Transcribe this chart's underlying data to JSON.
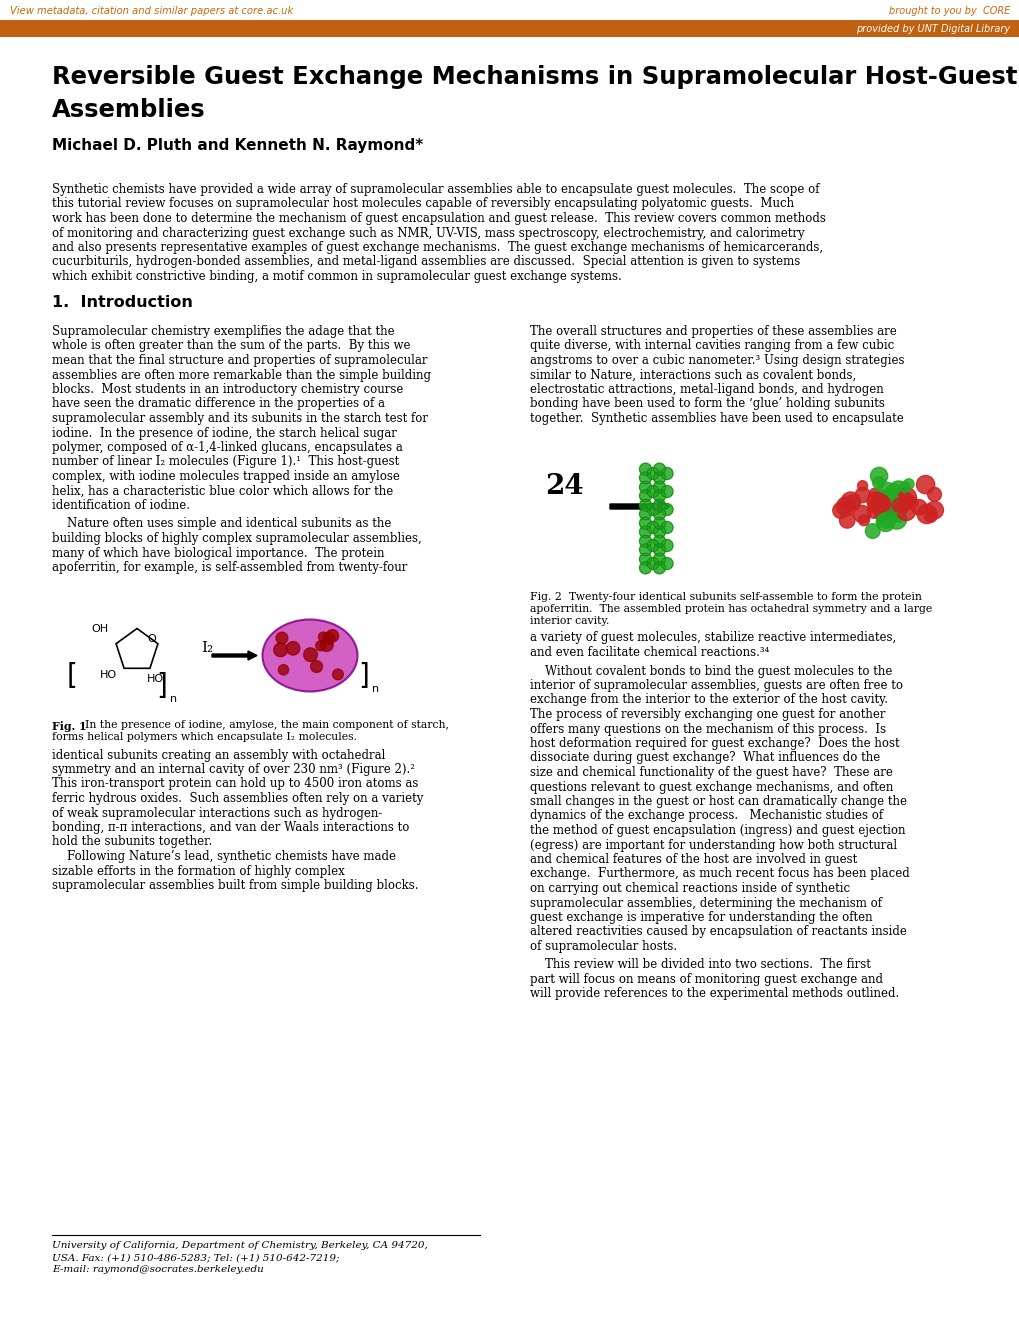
{
  "title_line1": "Reversible Guest Exchange Mechanisms in Supramolecular Host-Guest",
  "title_line2": "Assemblies",
  "authors": "Michael D. Pluth and Kenneth N. Raymond*",
  "header_text": "View metadata, citation and similar papers at core.ac.uk",
  "header_right": "brought to you by  CORE",
  "subheader_right": "provided by UNT Digital Library",
  "header_orange": "#C8680A",
  "header_bar_color": "#C06010",
  "abstract": "Synthetic chemists have provided a wide array of supramolecular assemblies able to encapsulate guest molecules.  The scope of this tutorial review focuses on supramolecular host molecules capable of reversibly encapsulating polyatomic guests.  Much work has been done to determine the mechanism of guest encapsulation and guest release.  This review covers common methods of monitoring and characterizing guest exchange such as NMR, UV-VIS, mass spectroscopy, electrochemistry, and calorimetry and also presents representative examples of guest exchange mechanisms.  The guest exchange mechanisms of hemicarcerands, cucurbiturils, hydrogen-bonded assemblies, and metal-ligand assemblies are discussed.  Special attention is given to systems which exhibit constrictive binding, a motif common in supramolecular guest exchange systems.",
  "section1_title": "1.  Introduction",
  "left_p1": "Supramolecular chemistry exemplifies the adage that the whole is often greater than the sum of the parts.  By this we mean that the final structure and properties of supramolecular assemblies are often more remarkable than the simple building blocks.  Most students in an introductory chemistry course have seen the dramatic difference in the properties of a supramolecular assembly and its subunits in the starch test for iodine.  In the presence of iodine, the starch helical sugar polymer, composed of α-1,4-linked glucans, encapsulates a number of linear I₂ molecules (Figure 1).¹  This host-guest complex, with iodine molecules trapped inside an amylose helix, has a characteristic blue color which allows for the identification of iodine.",
  "left_p2": "    Nature often uses simple and identical subunits as the building blocks of highly complex supramolecular assemblies, many of which have biological importance.  The protein apoferritin, for example, is self-assembled from twenty-four",
  "left_p3": "identical subunits creating an assembly with octahedral symmetry and an internal cavity of over 230 nm³ (Figure 2).² This iron-transport protein can hold up to 4500 iron atoms as ferric hydrous oxides.  Such assemblies often rely on a variety of weak supramolecular interactions such as hydrogen-bonding, π-π interactions, and van der Waals interactions to hold the subunits together.\n    Following Nature’s lead, synthetic chemists have made sizable efforts in the formation of highly complex supramolecular assemblies built from simple building blocks.",
  "right_p1": "The overall structures and properties of these assemblies are quite diverse, with internal cavities ranging from a few cubic angstroms to over a cubic nanometer.³ Using design strategies similar to Nature, interactions such as covalent bonds, electrostatic attractions, metal-ligand bonds, and hydrogen bonding have been used to form the ‘glue’ holding subunits together.  Synthetic assemblies have been used to encapsulate",
  "fig2_caption": "Fig. 2  Twenty-four identical subunits self-assemble to form the protein apoferritin.  The assembled protein has octahedral symmetry and a large interior cavity.",
  "right_p2": "a variety of guest molecules, stabilize reactive intermediates, and even facilitate chemical reactions.³⁴",
  "right_p3": "    Without covalent bonds to bind the guest molecules to the interior of supramolecular assemblies, guests are often free to exchange from the interior to the exterior of the host cavity. The process of reversibly exchanging one guest for another offers many questions on the mechanism of this process.  Is host deformation required for guest exchange?  Does the host dissociate during guest exchange?  What influences do the size and chemical functionality of the guest have?  These are questions relevant to guest exchange mechanisms, and often small changes in the guest or host can dramatically change the dynamics of the exchange process.   Mechanistic studies of the method of guest encapsulation (ingress) and guest ejection (egress) are important for understanding how both structural and chemical features of the host are involved in guest exchange.  Furthermore, as much recent focus has been placed on carrying out chemical reactions inside of synthetic supramolecular assemblies, determining the mechanism of guest exchange is imperative for understanding the often altered reactivities caused by encapsulation of reactants inside of supramolecular hosts.",
  "right_p4": "    This review will be divided into two sections.  The first part will focus on means of monitoring guest exchange and will provide references to the experimental methods outlined.",
  "fig1_caption_bold": "Fig. 1",
  "fig1_caption_text": "  In the presence of iodine, amylose, the main component of starch, forms helical polymers which encapsulate I₂ molecules.",
  "footer_text": "University of California, Department of Chemistry, Berkeley, CA 94720,\nUSA. Fax: (+1) 510-486-5283; Tel: (+1) 510-642-7219;\nE-mail: raymond@socrates.berkeley.edu",
  "bg_color": "#FFFFFF",
  "text_color": "#000000"
}
